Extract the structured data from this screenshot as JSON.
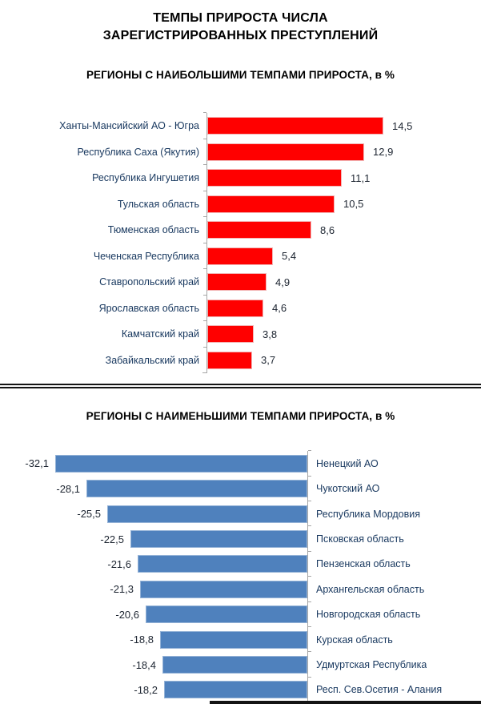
{
  "page": {
    "title_line1": "ТЕМПЫ ПРИРОСТА ЧИСЛА",
    "title_line2": "ЗАРЕГИСТРИРОВАННЫХ ПРЕСТУПЛЕНИЙ"
  },
  "colors": {
    "bar_positive": "#ff0000",
    "bar_negative": "#4f81bd",
    "axis": "#a6a6a6",
    "category_label": "#17375E",
    "value_label": "#1c2430",
    "divider": "#141414"
  },
  "chart_data": [
    {
      "type": "bar",
      "orientation": "horizontal",
      "direction": "right",
      "title": "РЕГИОНЫ С НАИБОЛЬШИМИ ТЕМПАМИ ПРИРОСТА, в %",
      "bar_color": "#ff0000",
      "axis_side": "left",
      "value_format": "comma-decimal",
      "xlim": [
        0,
        16
      ],
      "categories": [
        "Ханты-Мансийский АО - Югра",
        "Республика Саха (Якутия)",
        "Республика Ингушетия",
        "Тульская область",
        "Тюменская область",
        "Чеченская Республика",
        "Ставропольский край",
        "Ярославская область",
        "Камчатский край",
        "Забайкальский край"
      ],
      "values": [
        14.5,
        12.9,
        11.1,
        10.5,
        8.6,
        5.4,
        4.9,
        4.6,
        3.8,
        3.7
      ],
      "value_labels": [
        "14,5",
        "12,9",
        "11,1",
        "10,5",
        "8,6",
        "5,4",
        "4,9",
        "4,6",
        "3,8",
        "3,7"
      ]
    },
    {
      "type": "bar",
      "orientation": "horizontal",
      "direction": "left",
      "title": "РЕГИОНЫ С НАИМЕНЬШИМИ ТЕМПАМИ ПРИРОСТА, в %",
      "bar_color": "#4f81bd",
      "axis_side": "right",
      "value_format": "comma-decimal",
      "xlim": [
        -33,
        0
      ],
      "categories": [
        "Ненецкий АО",
        "Чукотский АО",
        "Республика Мордовия",
        "Псковская область",
        "Пензенская область",
        "Архангельская область",
        "Новгородская  область",
        "Курская область",
        "Удмуртская Республика",
        "Респ. Сев.Осетия - Алания"
      ],
      "values": [
        -32.1,
        -28.1,
        -25.5,
        -22.5,
        -21.6,
        -21.3,
        -20.6,
        -18.8,
        -18.4,
        -18.2
      ],
      "value_labels": [
        "-32,1",
        "-28,1",
        "-25,5",
        "-22,5",
        "-21,6",
        "-21,3",
        "-20,6",
        "-18,8",
        "-18,4",
        "-18,2"
      ]
    }
  ]
}
